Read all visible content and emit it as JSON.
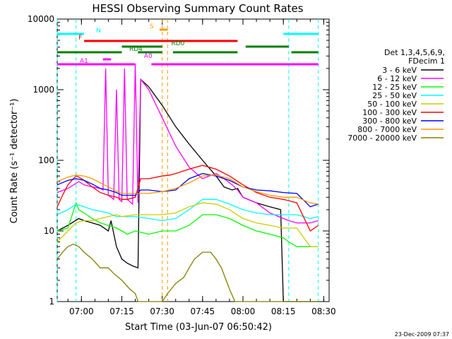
{
  "chart_data": {
    "type": "line",
    "title": "HESSI Observing Summary Count Rates",
    "xlabel": "Start Time (03-Jun-07 06:50:42)",
    "ylabel": "Count Rate (s⁻¹ detector⁻¹)",
    "xscale": "time (minutes)",
    "yscale": "log",
    "xlim": [
      "06:51",
      "08:30"
    ],
    "ylim": [
      1,
      10000
    ],
    "x_ticks": [
      "07:00",
      "07:15",
      "07:30",
      "07:45",
      "08:00",
      "08:15",
      "08:30"
    ],
    "x_tick_minutes": [
      420,
      435,
      450,
      465,
      480,
      495,
      510
    ],
    "y_ticks": [
      "1",
      "10",
      "100",
      "1000",
      "10000"
    ],
    "y_tick_values": [
      1,
      10,
      100,
      1000,
      10000
    ],
    "legend_header": [
      "Det 1,3,4,5,6,9,",
      "FDecim 1"
    ],
    "legend_position": "right",
    "footer_date": "23-Dec-2009 07:37",
    "series": [
      {
        "name": "3 - 6 keV",
        "color": "#000000",
        "x": [
          411,
          415,
          419,
          421,
          424,
          427,
          430,
          431,
          433,
          435,
          437,
          439,
          441,
          442,
          445,
          450,
          455,
          460,
          465,
          470,
          473,
          476,
          478,
          480,
          485,
          490,
          494,
          495,
          496,
          497,
          498,
          499,
          500,
          501,
          503,
          507,
          508
        ],
        "y": [
          10,
          12,
          15,
          14,
          13,
          12,
          10,
          14,
          6,
          4,
          3.5,
          3.2,
          3,
          1400,
          1100,
          600,
          300,
          170,
          100,
          60,
          42,
          38,
          40,
          30,
          25,
          22,
          20,
          1,
          1,
          1,
          1,
          1,
          1,
          1,
          1,
          1,
          1
        ]
      },
      {
        "name": "6 - 12 keV",
        "color": "#ff00ff",
        "x": [
          411,
          415,
          419,
          421,
          424,
          427,
          428,
          429,
          430,
          431,
          432,
          433,
          434,
          435,
          436,
          437,
          438,
          439,
          440,
          441,
          442,
          445,
          450,
          455,
          460,
          465,
          470,
          473,
          476,
          478,
          480,
          485,
          490,
          495,
          497,
          500,
          505,
          508
        ],
        "y": [
          35,
          40,
          50,
          45,
          42,
          40,
          38,
          2000,
          32,
          30,
          28,
          1000,
          28,
          26,
          2000,
          28,
          26,
          24,
          2300,
          25,
          1400,
          1000,
          400,
          160,
          80,
          55,
          65,
          55,
          45,
          38,
          30,
          25,
          18,
          15,
          14,
          13,
          13,
          14
        ]
      },
      {
        "name": "12 - 25 keV",
        "color": "#00ff00",
        "x": [
          411,
          415,
          418,
          419,
          421,
          424,
          427,
          430,
          433,
          435,
          437,
          440,
          445,
          450,
          455,
          460,
          465,
          470,
          475,
          480,
          485,
          490,
          495,
          497,
          500,
          505,
          508
        ],
        "y": [
          10,
          11,
          25,
          20,
          18,
          15,
          13,
          12,
          11,
          10,
          9,
          10,
          9,
          10,
          10,
          12,
          17,
          17,
          15,
          12,
          10,
          9,
          8,
          7,
          6,
          6,
          6
        ]
      },
      {
        "name": "25 - 50 keV",
        "color": "#00ffff",
        "x": [
          411,
          415,
          418,
          421,
          424,
          427,
          430,
          433,
          435,
          440,
          445,
          450,
          455,
          460,
          465,
          470,
          475,
          480,
          485,
          490,
          495,
          500,
          505,
          508
        ],
        "y": [
          17,
          20,
          24,
          22,
          20,
          19,
          18,
          16,
          16,
          16,
          15,
          14,
          15,
          20,
          28,
          28,
          24,
          20,
          18,
          17,
          17,
          17,
          15,
          16
        ]
      },
      {
        "name": "50 - 100 keV",
        "color": "#cccc00",
        "x": [
          411,
          415,
          418,
          421,
          424,
          427,
          430,
          433,
          435,
          440,
          445,
          450,
          455,
          460,
          465,
          470,
          475,
          480,
          485,
          490,
          495,
          500,
          505,
          508
        ],
        "y": [
          7,
          10,
          13,
          14,
          14,
          15,
          16,
          17,
          16,
          17,
          17,
          17,
          18,
          22,
          25,
          24,
          20,
          15,
          13,
          12,
          11,
          11,
          6,
          6
        ]
      },
      {
        "name": "100 - 300 keV",
        "color": "#ff0000",
        "x": [
          411,
          413,
          415,
          417,
          418,
          419,
          421,
          424,
          427,
          430,
          433,
          435,
          437,
          440,
          442,
          445,
          450,
          453,
          455,
          460,
          465,
          470,
          475,
          480,
          485,
          490,
          495,
          500,
          505,
          508
        ],
        "y": [
          22,
          32,
          45,
          55,
          60,
          58,
          52,
          42,
          35,
          32,
          30,
          28,
          28,
          30,
          55,
          55,
          60,
          62,
          65,
          75,
          85,
          75,
          60,
          45,
          35,
          30,
          28,
          25,
          10,
          12
        ]
      },
      {
        "name": "300 - 800 keV",
        "color": "#0000ff",
        "x": [
          411,
          415,
          418,
          421,
          424,
          427,
          430,
          433,
          435,
          437,
          440,
          442,
          445,
          450,
          455,
          460,
          465,
          470,
          475,
          480,
          485,
          490,
          495,
          500,
          505,
          508
        ],
        "y": [
          45,
          52,
          55,
          52,
          46,
          40,
          38,
          35,
          32,
          32,
          32,
          38,
          38,
          36,
          38,
          55,
          65,
          60,
          52,
          42,
          38,
          37,
          35,
          34,
          22,
          24
        ]
      },
      {
        "name": "800 - 7000 keV",
        "color": "#ff9900",
        "x": [
          411,
          415,
          418,
          421,
          424,
          427,
          430,
          433,
          435,
          440,
          445,
          450,
          455,
          460,
          465,
          470,
          475,
          480,
          485,
          490,
          495,
          500,
          505,
          508
        ],
        "y": [
          50,
          58,
          62,
          60,
          55,
          48,
          42,
          37,
          34,
          34,
          34,
          36,
          40,
          48,
          60,
          62,
          55,
          42,
          36,
          32,
          30,
          30,
          25,
          24
        ]
      },
      {
        "name": "7000 - 20000 keV",
        "color": "#808000",
        "x": [
          411,
          413,
          415,
          417,
          419,
          421,
          424,
          427,
          430,
          432,
          435,
          438,
          440,
          441,
          442,
          445,
          448,
          450,
          452,
          455,
          458,
          460,
          462,
          465,
          468,
          470,
          472,
          475,
          477,
          480,
          485,
          490,
          495,
          500,
          505,
          508
        ],
        "y": [
          4,
          5,
          6,
          6.5,
          6,
          5,
          4,
          3,
          3,
          2.5,
          2,
          1.5,
          1.3,
          1,
          1,
          1,
          1,
          1,
          1.3,
          1.8,
          2.2,
          3,
          4,
          5,
          5,
          4,
          3,
          1.5,
          1,
          1,
          1,
          1,
          1,
          1,
          1,
          1
        ]
      }
    ],
    "flags": [
      {
        "label": "F",
        "color": "#ff0000",
        "segments": [
          [
            421,
            478
          ]
        ]
      },
      {
        "label": "N",
        "color": "#00ffff",
        "segments": [
          [
            411,
            421
          ],
          [
            495,
            508
          ]
        ]
      },
      {
        "label": "S",
        "color": "#ff9900",
        "segments": [
          [
            449,
            452
          ]
        ]
      },
      {
        "label": "RD0",
        "color": "#008000",
        "segments": [
          [
            435,
            450
          ],
          [
            481,
            497
          ]
        ]
      },
      {
        "label": "RD4",
        "color": "#008000",
        "segments": [
          [
            411,
            435
          ],
          [
            441,
            450
          ],
          [
            454,
            478
          ],
          [
            498,
            508
          ]
        ]
      },
      {
        "label": "A0",
        "color": "#ff00ff",
        "segments": [
          [
            428,
            431
          ]
        ]
      },
      {
        "label": "A1",
        "color": "#ff00ff",
        "segments": [
          [
            411,
            440
          ],
          [
            446,
            508
          ]
        ]
      }
    ],
    "cyan_lines": [
      411,
      418,
      497,
      508
    ],
    "orange_lines": [
      450,
      452
    ]
  }
}
